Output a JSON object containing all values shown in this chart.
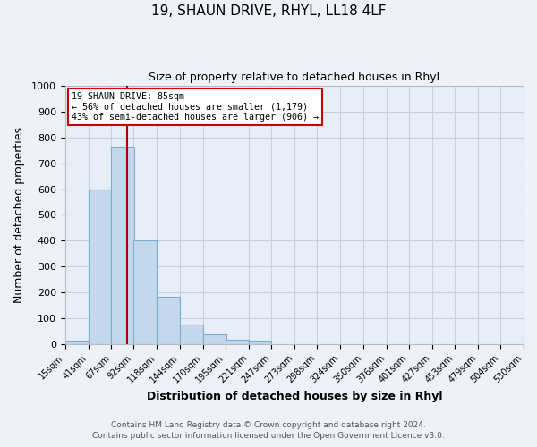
{
  "title": "19, SHAUN DRIVE, RHYL, LL18 4LF",
  "subtitle": "Size of property relative to detached houses in Rhyl",
  "xlabel": "Distribution of detached houses by size in Rhyl",
  "ylabel": "Number of detached properties",
  "bar_left_edges": [
    15,
    41,
    67,
    92,
    118,
    144,
    170,
    195,
    221,
    247,
    273,
    298,
    324,
    350,
    376,
    401,
    427,
    453,
    479,
    504
  ],
  "bar_heights": [
    15,
    600,
    765,
    400,
    185,
    78,
    40,
    18,
    15,
    0,
    0,
    0,
    0,
    0,
    0,
    0,
    0,
    0,
    0,
    0
  ],
  "bin_width": 26,
  "tick_labels": [
    "15sqm",
    "41sqm",
    "67sqm",
    "92sqm",
    "118sqm",
    "144sqm",
    "170sqm",
    "195sqm",
    "221sqm",
    "247sqm",
    "273sqm",
    "298sqm",
    "324sqm",
    "350sqm",
    "376sqm",
    "401sqm",
    "427sqm",
    "453sqm",
    "479sqm",
    "504sqm",
    "530sqm"
  ],
  "bar_color": "#c5d8eb",
  "bar_edge_color": "#7aafd4",
  "property_line_x": 85,
  "property_line_color": "#aa0000",
  "annotation_line1": "19 SHAUN DRIVE: 85sqm",
  "annotation_line2": "← 56% of detached houses are smaller (1,179)",
  "annotation_line3": "43% of semi-detached houses are larger (906) →",
  "ylim": [
    0,
    1000
  ],
  "xlim": [
    15,
    530
  ],
  "yticks": [
    0,
    100,
    200,
    300,
    400,
    500,
    600,
    700,
    800,
    900,
    1000
  ],
  "footnote1": "Contains HM Land Registry data © Crown copyright and database right 2024.",
  "footnote2": "Contains public sector information licensed under the Open Government Licence v3.0.",
  "bg_color": "#eef2f8",
  "plot_bg_color": "#e8eef8",
  "grid_color": "#c8d0dc"
}
